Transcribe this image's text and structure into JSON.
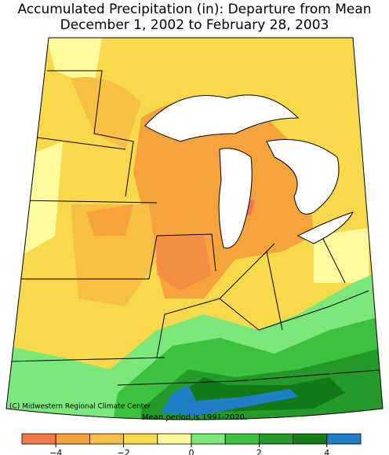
{
  "header": {
    "title_line1": "Accumulated Precipitation (in): Departure from Mean",
    "title_line2": "December 1, 2002 to February 28, 2003"
  },
  "map": {
    "credit": "(C) Midwestern Regional Climate Center",
    "note": "Mean period is 1991-2020."
  },
  "legend": {
    "lim": [
      -5,
      5
    ],
    "colors": [
      "#f4794a",
      "#f5a33a",
      "#f7c044",
      "#f9d94c",
      "#fdfb9c",
      "#7ce77a",
      "#3cc23e",
      "#249a28",
      "#137a18",
      "#1f7fc4"
    ],
    "ticks": [
      {
        "value": -4,
        "label": "−4"
      },
      {
        "value": -2,
        "label": "−2"
      },
      0,
      2,
      4
    ]
  }
}
